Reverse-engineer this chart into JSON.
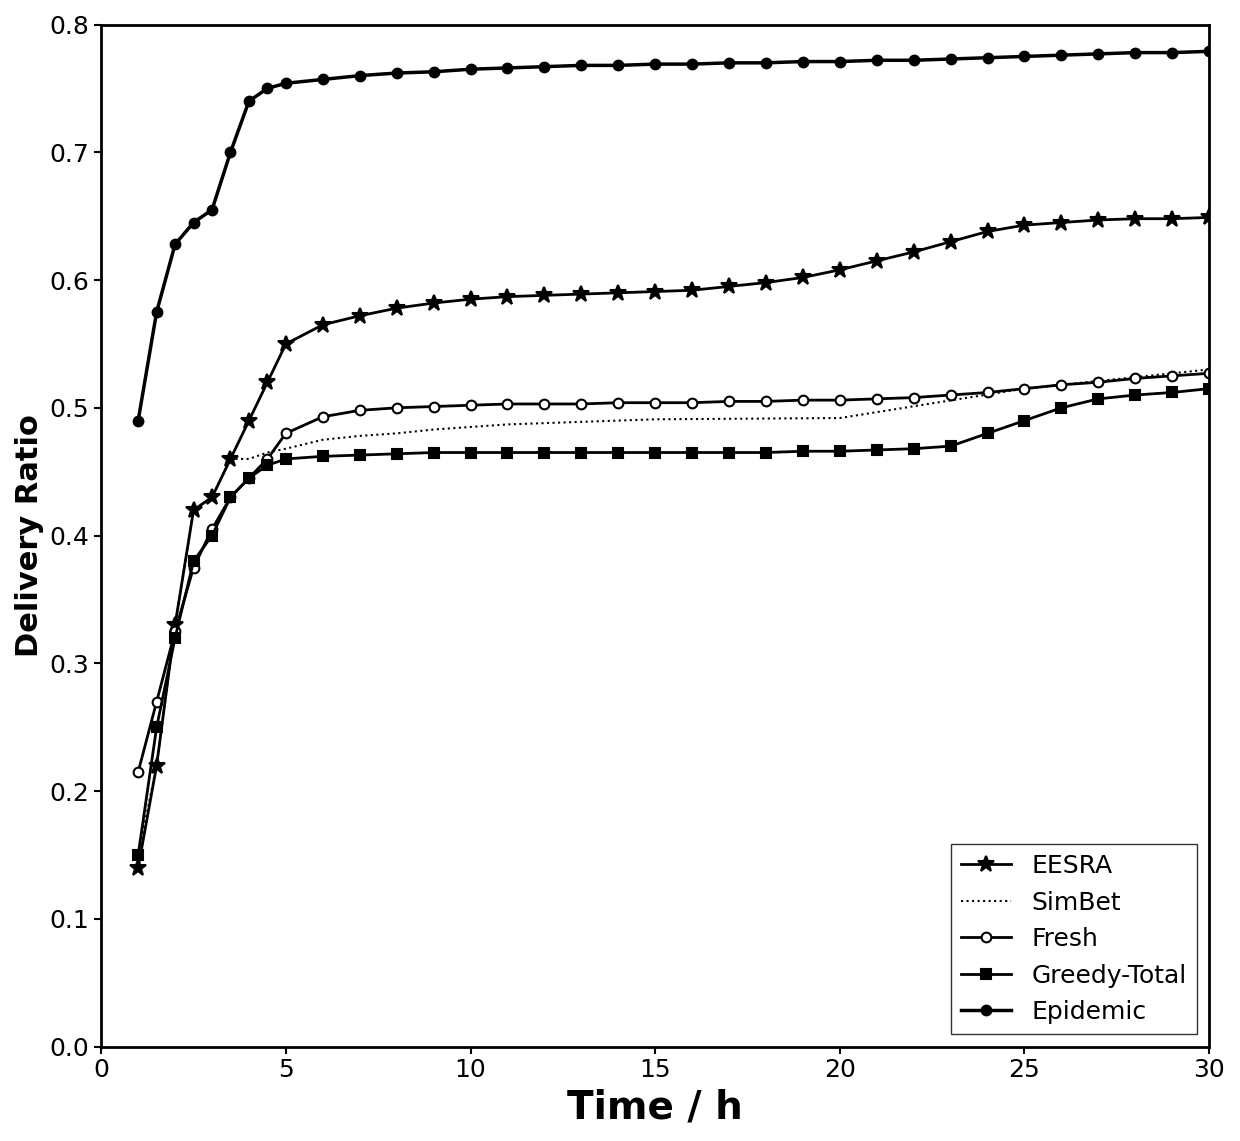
{
  "title": "",
  "xlabel": "Time / h",
  "ylabel": "Delivery Ratio",
  "xlim": [
    0,
    30
  ],
  "ylim": [
    0,
    0.8
  ],
  "xticks": [
    0,
    5,
    10,
    15,
    20,
    25,
    30
  ],
  "yticks": [
    0,
    0.1,
    0.2,
    0.3,
    0.4,
    0.5,
    0.6,
    0.7,
    0.8
  ],
  "series": {
    "EESRA": {
      "x": [
        1,
        1.5,
        2,
        2.5,
        3,
        3.5,
        4,
        4.5,
        5,
        6,
        7,
        8,
        9,
        10,
        11,
        12,
        13,
        14,
        15,
        16,
        17,
        18,
        19,
        20,
        21,
        22,
        23,
        24,
        25,
        26,
        27,
        28,
        29,
        30
      ],
      "y": [
        0.14,
        0.22,
        0.33,
        0.42,
        0.43,
        0.46,
        0.49,
        0.52,
        0.55,
        0.565,
        0.572,
        0.578,
        0.582,
        0.585,
        0.587,
        0.588,
        0.589,
        0.59,
        0.591,
        0.592,
        0.595,
        0.598,
        0.602,
        0.608,
        0.615,
        0.622,
        0.63,
        0.638,
        0.643,
        0.645,
        0.647,
        0.648,
        0.648,
        0.649
      ],
      "color": "#000000",
      "marker": "*",
      "markersize": 10,
      "linewidth": 2.0,
      "linestyle": "-"
    },
    "SimBet": {
      "x": [
        1,
        1.5,
        2,
        2.5,
        3,
        3.5,
        4,
        4.5,
        5,
        6,
        7,
        8,
        9,
        10,
        11,
        12,
        13,
        14,
        15,
        20,
        25,
        30
      ],
      "y": [
        0.15,
        0.22,
        0.33,
        0.42,
        0.43,
        0.46,
        0.46,
        0.465,
        0.468,
        0.475,
        0.478,
        0.48,
        0.483,
        0.485,
        0.487,
        0.488,
        0.489,
        0.49,
        0.491,
        0.492,
        0.515,
        0.53
      ],
      "color": "#000000",
      "marker": "None",
      "markersize": 0,
      "linewidth": 1.5,
      "linestyle": ":"
    },
    "Fresh": {
      "x": [
        1,
        1.5,
        2,
        2.5,
        3,
        3.5,
        4,
        4.5,
        5,
        6,
        7,
        8,
        9,
        10,
        11,
        12,
        13,
        14,
        15,
        16,
        17,
        18,
        19,
        20,
        21,
        22,
        23,
        24,
        25,
        26,
        27,
        28,
        29,
        30
      ],
      "y": [
        0.215,
        0.27,
        0.325,
        0.375,
        0.405,
        0.43,
        0.445,
        0.46,
        0.48,
        0.493,
        0.498,
        0.5,
        0.501,
        0.502,
        0.503,
        0.503,
        0.503,
        0.504,
        0.504,
        0.504,
        0.505,
        0.505,
        0.506,
        0.506,
        0.507,
        0.508,
        0.51,
        0.512,
        0.515,
        0.518,
        0.52,
        0.523,
        0.525,
        0.527
      ],
      "color": "#000000",
      "marker": "o",
      "markersize": 7,
      "linewidth": 2.0,
      "linestyle": "-",
      "markerfacecolor": "white"
    },
    "Greedy-Total": {
      "x": [
        1,
        1.5,
        2,
        2.5,
        3,
        3.5,
        4,
        4.5,
        5,
        6,
        7,
        8,
        9,
        10,
        11,
        12,
        13,
        14,
        15,
        16,
        17,
        18,
        19,
        20,
        21,
        22,
        23,
        24,
        25,
        26,
        27,
        28,
        29,
        30
      ],
      "y": [
        0.15,
        0.25,
        0.32,
        0.38,
        0.4,
        0.43,
        0.445,
        0.455,
        0.46,
        0.462,
        0.463,
        0.464,
        0.465,
        0.465,
        0.465,
        0.465,
        0.465,
        0.465,
        0.465,
        0.465,
        0.465,
        0.465,
        0.466,
        0.466,
        0.467,
        0.468,
        0.47,
        0.48,
        0.49,
        0.5,
        0.507,
        0.51,
        0.512,
        0.515
      ],
      "color": "#000000",
      "marker": "s",
      "markersize": 7,
      "linewidth": 2.0,
      "linestyle": "-",
      "markerfacecolor": "black"
    },
    "Epidemic": {
      "x": [
        1,
        1.5,
        2,
        2.5,
        3,
        3.5,
        4,
        4.5,
        5,
        6,
        7,
        8,
        9,
        10,
        11,
        12,
        13,
        14,
        15,
        16,
        17,
        18,
        19,
        20,
        21,
        22,
        23,
        24,
        25,
        26,
        27,
        28,
        29,
        30
      ],
      "y": [
        0.49,
        0.575,
        0.628,
        0.645,
        0.655,
        0.7,
        0.74,
        0.75,
        0.754,
        0.757,
        0.76,
        0.762,
        0.763,
        0.765,
        0.766,
        0.767,
        0.768,
        0.768,
        0.769,
        0.769,
        0.77,
        0.77,
        0.771,
        0.771,
        0.772,
        0.772,
        0.773,
        0.774,
        0.775,
        0.776,
        0.777,
        0.778,
        0.778,
        0.779
      ],
      "color": "#000000",
      "marker": "o",
      "markersize": 7,
      "linewidth": 2.5,
      "linestyle": "-",
      "markerfacecolor": "black"
    }
  },
  "legend_order": [
    "EESRA",
    "SimBet",
    "Fresh",
    "Greedy-Total",
    "Epidemic"
  ],
  "legend_loc": "lower right",
  "background_color": "#ffffff",
  "xlabel_fontsize": 28,
  "ylabel_fontsize": 22,
  "tick_fontsize": 18,
  "legend_fontsize": 18
}
